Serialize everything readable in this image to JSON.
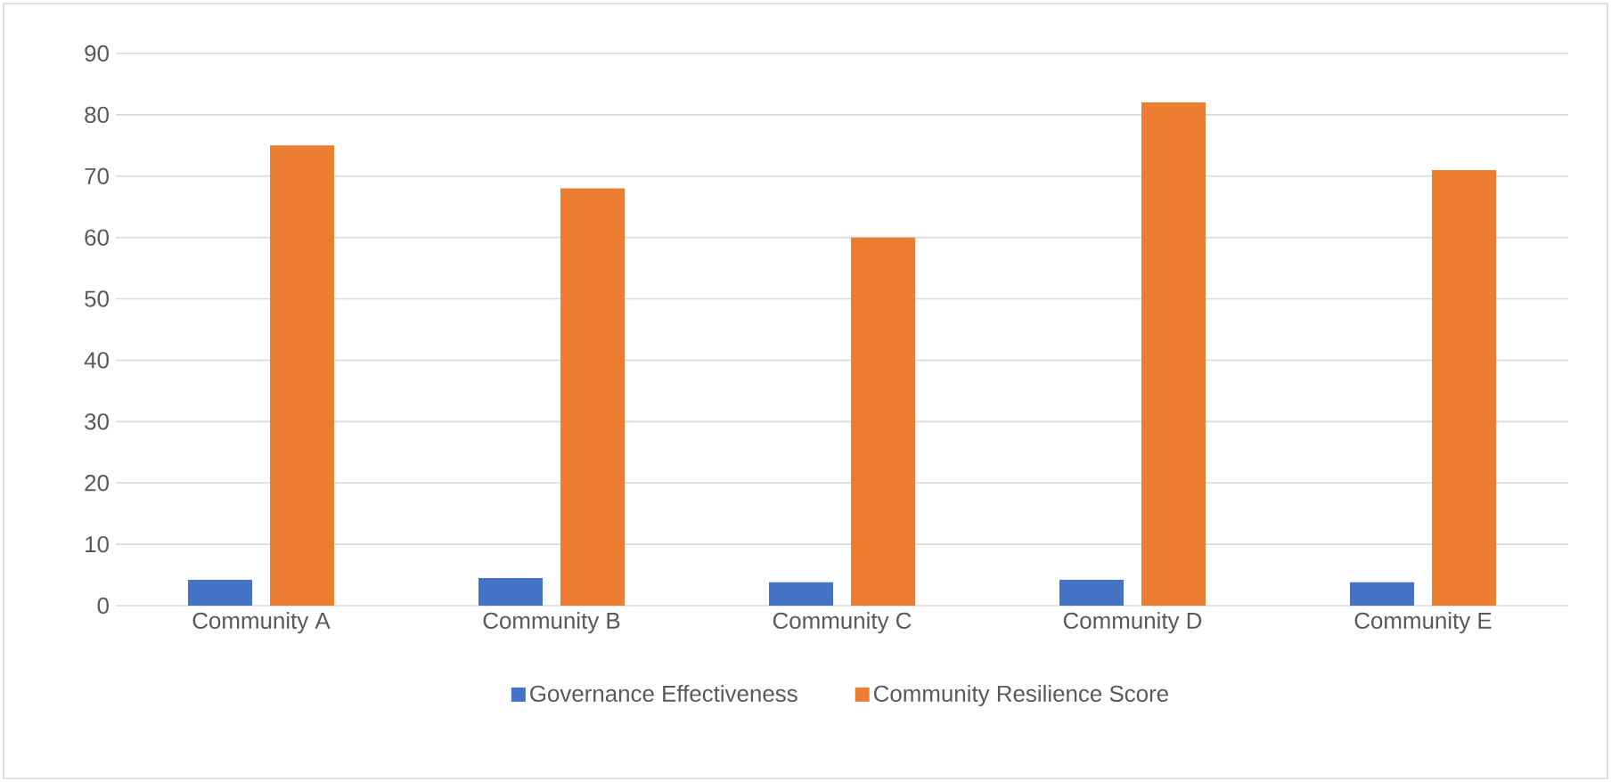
{
  "chart_data": {
    "type": "bar",
    "categories": [
      "Community A",
      "Community B",
      "Community C",
      "Community D",
      "Community E"
    ],
    "series": [
      {
        "name": "Governance Effectiveness",
        "color": "#4472c4",
        "values": [
          4.2,
          4.5,
          3.8,
          4.2,
          3.8
        ]
      },
      {
        "name": "Community Resilience Score",
        "color": "#ed7d31",
        "values": [
          75,
          68,
          60,
          82,
          71
        ]
      }
    ],
    "ylim": [
      0,
      90
    ],
    "yticks": [
      0,
      10,
      20,
      30,
      40,
      50,
      60,
      70,
      80,
      90
    ],
    "grid": "y",
    "legend": "bottom"
  }
}
